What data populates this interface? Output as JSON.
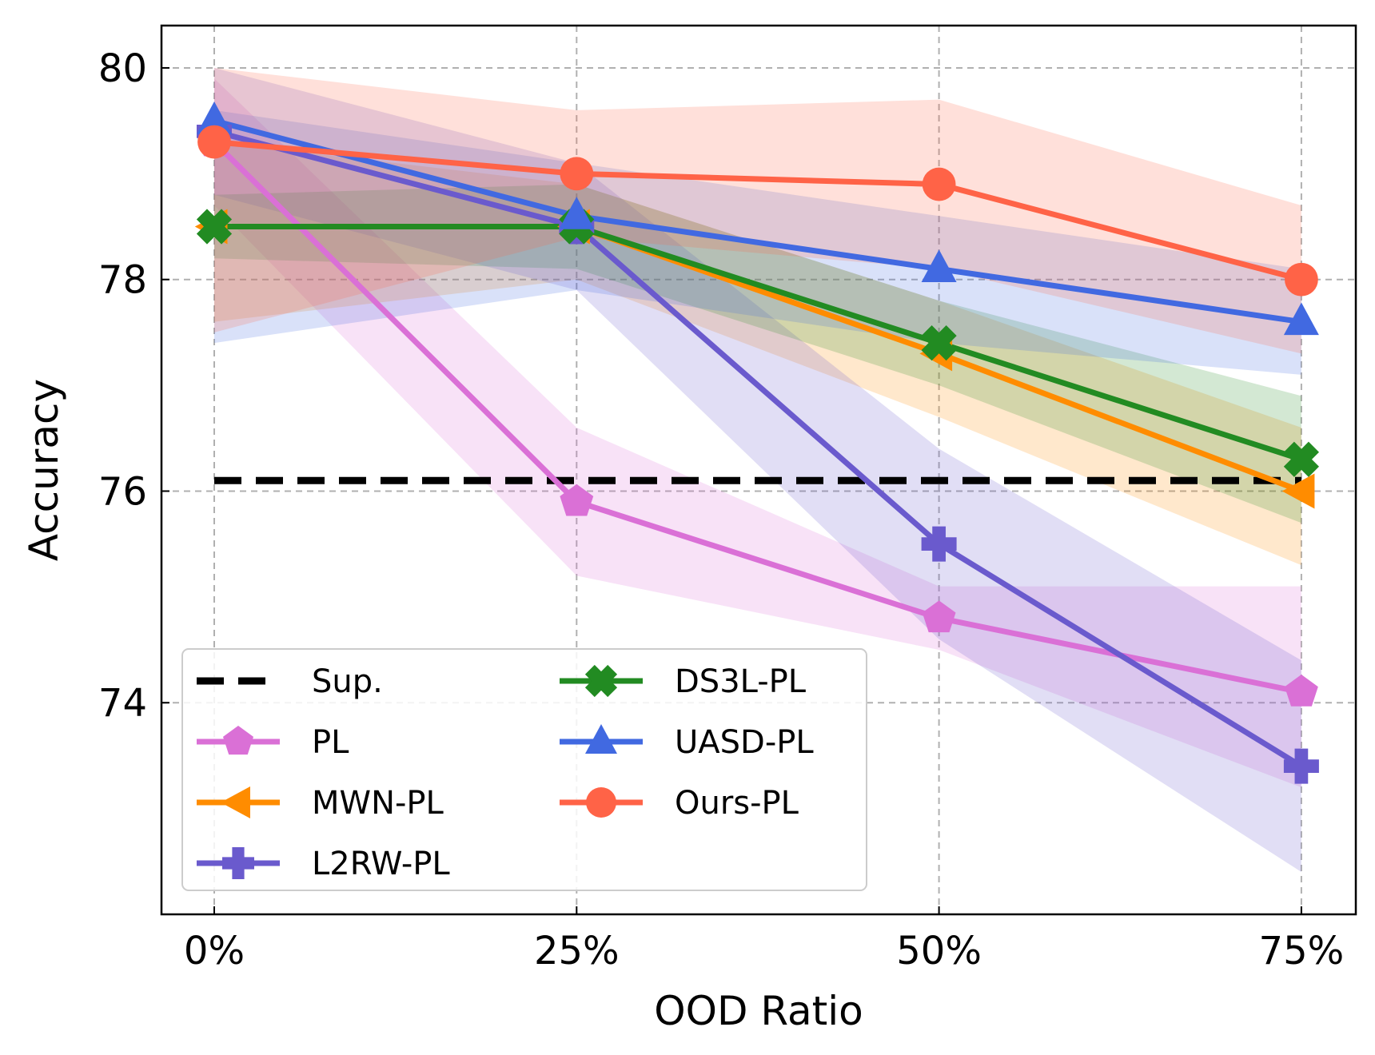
{
  "chart_data": {
    "type": "line",
    "xlabel": "OOD Ratio",
    "ylabel": "Accuracy",
    "categories": [
      "0%",
      "25%",
      "50%",
      "75%"
    ],
    "ylim": [
      72.0,
      80.4
    ],
    "yticks": [
      74,
      76,
      78,
      80
    ],
    "ytick_labels": [
      "74",
      "76",
      "78",
      "80"
    ],
    "grid": true,
    "legend_position": "lower-left",
    "baseline": {
      "name": "Sup.",
      "value": 76.1,
      "color": "#000000",
      "style": "dashed"
    },
    "series": [
      {
        "name": "PL",
        "color": "#da70d6",
        "marker": "pentagon",
        "values": [
          79.3,
          75.9,
          74.8,
          74.1
        ],
        "lower": [
          78.7,
          75.2,
          74.5,
          73.2
        ],
        "upper": [
          79.9,
          76.6,
          75.1,
          75.1
        ]
      },
      {
        "name": "MWN-PL",
        "color": "#ff8c00",
        "marker": "triangle-left",
        "values": [
          78.5,
          78.5,
          77.3,
          76.0
        ],
        "lower": [
          77.6,
          78.0,
          76.7,
          75.3
        ],
        "upper": [
          79.3,
          78.9,
          77.8,
          76.6
        ]
      },
      {
        "name": "L2RW-PL",
        "color": "#6a5acd",
        "marker": "plus",
        "values": [
          79.4,
          78.5,
          75.5,
          73.4
        ],
        "lower": [
          78.8,
          77.9,
          74.6,
          72.4
        ],
        "upper": [
          80.0,
          79.1,
          76.4,
          74.4
        ]
      },
      {
        "name": "DS3L-PL",
        "color": "#228b22",
        "marker": "x",
        "values": [
          78.5,
          78.5,
          77.4,
          76.3
        ],
        "lower": [
          78.2,
          78.1,
          77.0,
          75.7
        ],
        "upper": [
          78.8,
          78.9,
          77.8,
          76.9
        ]
      },
      {
        "name": "UASD-PL",
        "color": "#4169e1",
        "marker": "triangle-up",
        "values": [
          79.5,
          78.6,
          78.1,
          77.6
        ],
        "lower": [
          77.4,
          77.9,
          77.4,
          77.1
        ],
        "upper": [
          79.6,
          79.1,
          78.6,
          78.1
        ]
      },
      {
        "name": "Ours-PL",
        "color": "#ff6347",
        "marker": "circle",
        "values": [
          79.3,
          79.0,
          78.9,
          78.0
        ],
        "lower": [
          77.5,
          78.4,
          78.1,
          77.3
        ],
        "upper": [
          80.0,
          79.6,
          79.7,
          78.7
        ]
      }
    ],
    "legend_order": [
      "Sup.",
      "PL",
      "MWN-PL",
      "L2RW-PL",
      "DS3L-PL",
      "UASD-PL",
      "Ours-PL"
    ]
  }
}
